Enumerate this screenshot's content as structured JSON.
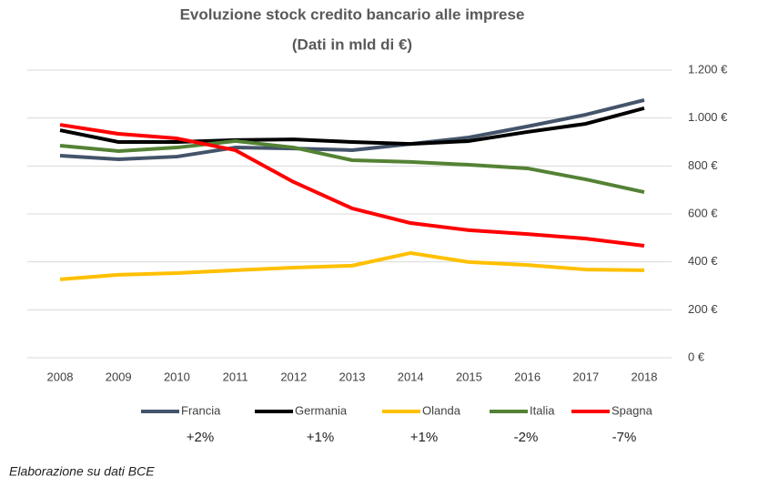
{
  "chart_data": {
    "type": "line",
    "title": "Evoluzione stock credito bancario alle imprese",
    "subtitle": "(Dati in mld di €)",
    "categories": [
      "2008",
      "2009",
      "2010",
      "2011",
      "2012",
      "2013",
      "2014",
      "2015",
      "2016",
      "2017",
      "2018"
    ],
    "series": [
      {
        "name": "Francia",
        "color": "#44546a",
        "values": [
          843,
          828,
          839,
          877,
          873,
          866,
          892,
          919,
          965,
          1014,
          1075
        ]
      },
      {
        "name": "Germania",
        "color": "#000000",
        "values": [
          949,
          900,
          900,
          908,
          911,
          900,
          892,
          904,
          942,
          976,
          1041
        ]
      },
      {
        "name": "Olanda",
        "color": "#ffc000",
        "values": [
          327,
          346,
          353,
          365,
          376,
          384,
          437,
          399,
          387,
          368,
          365
        ]
      },
      {
        "name": "Italia",
        "color": "#548235",
        "values": [
          885,
          862,
          877,
          904,
          877,
          824,
          817,
          805,
          790,
          744,
          691
        ]
      },
      {
        "name": "Spagna",
        "color": "#ff0000",
        "values": [
          972,
          934,
          915,
          866,
          733,
          623,
          562,
          532,
          516,
          497,
          467
        ]
      }
    ],
    "ylim": [
      0,
      1200
    ],
    "yticks": [
      {
        "value": 0,
        "label": "0 €"
      },
      {
        "value": 200,
        "label": "200 €"
      },
      {
        "value": 400,
        "label": "400 €"
      },
      {
        "value": 600,
        "label": "600 €"
      },
      {
        "value": 800,
        "label": "800 €"
      },
      {
        "value": 1000,
        "label": "1.000 €"
      },
      {
        "value": 1200,
        "label": "1.200 €"
      }
    ],
    "grid": true,
    "legend": "bottom",
    "annotations": [
      "+2%",
      "+1%",
      "+1%",
      "-2%",
      "-7%"
    ],
    "footnote": "Elaborazione su dati BCE"
  }
}
